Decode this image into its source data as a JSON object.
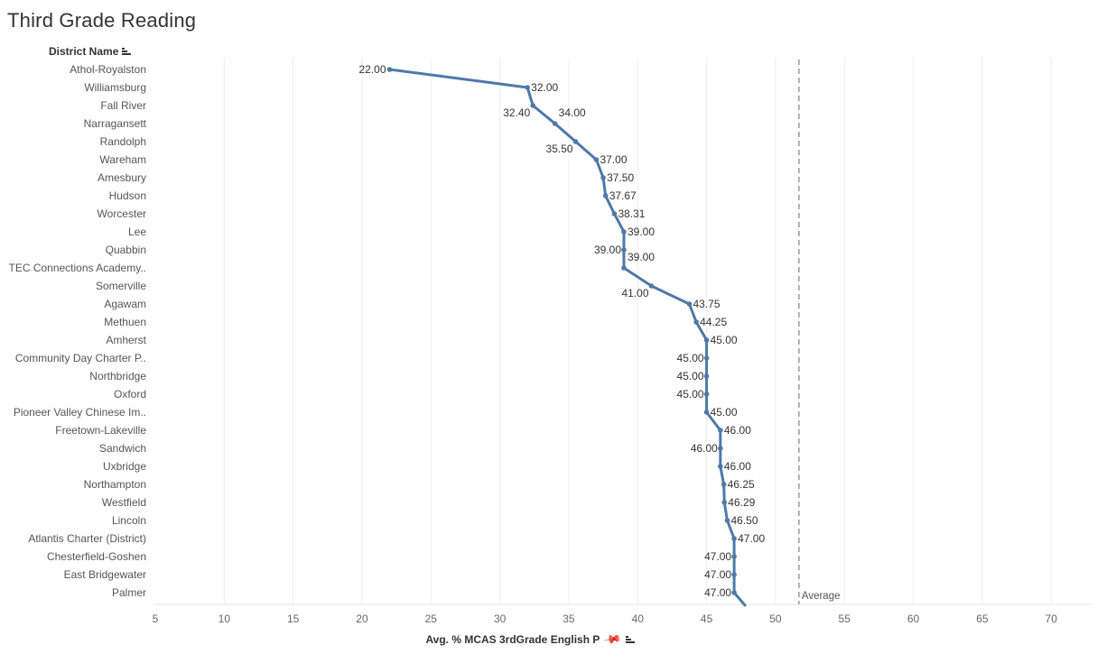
{
  "title": "Third Grade Reading",
  "row_header": {
    "label": "District Name",
    "sort_icon": "sort-descending-icon"
  },
  "x_axis": {
    "label": "Avg. % MCAS 3rdGrade English P",
    "pin_icon": "pin-icon",
    "sort_icon": "sort-descending-icon"
  },
  "reference_line": {
    "label": "Average",
    "value": 51.7
  },
  "chart_data": {
    "type": "line",
    "orientation": "horizontal",
    "categories": [
      "Athol-Royalston",
      "Williamsburg",
      "Fall River",
      "Narragansett",
      "Randolph",
      "Wareham",
      "Amesbury",
      "Hudson",
      "Worcester",
      "Lee",
      "Quabbin",
      "TEC Connections Academy..",
      "Somerville",
      "Agawam",
      "Methuen",
      "Amherst",
      "Community Day Charter P..",
      "Northbridge",
      "Oxford",
      "Pioneer Valley Chinese Im..",
      "Freetown-Lakeville",
      "Sandwich",
      "Uxbridge",
      "Northampton",
      "Westfield",
      "Lincoln",
      "Atlantis Charter (District)",
      "Chesterfield-Goshen",
      "East Bridgewater",
      "Palmer"
    ],
    "values": [
      22.0,
      32.0,
      32.4,
      34.0,
      35.5,
      37.0,
      37.5,
      37.67,
      38.31,
      39.0,
      39.0,
      39.0,
      41.0,
      43.75,
      44.25,
      45.0,
      45.0,
      45.0,
      45.0,
      45.0,
      46.0,
      46.0,
      46.0,
      46.25,
      46.29,
      46.5,
      47.0,
      47.0,
      47.0,
      47.0
    ],
    "labels": [
      "22.00",
      "32.00",
      "32.40",
      "34.00",
      "35.50",
      "37.00",
      "37.50",
      "37.67",
      "38.31",
      "39.00",
      "39.00",
      "39.00",
      "41.00",
      "43.75",
      "44.25",
      "45.00",
      "45.00",
      "45.00",
      "45.00",
      "45.00",
      "46.00",
      "46.00",
      "46.00",
      "46.25",
      "46.29",
      "46.50",
      "47.00",
      "47.00",
      "47.00",
      "47.00"
    ],
    "xlim": [
      5,
      73
    ],
    "xticks": [
      5,
      10,
      15,
      20,
      25,
      30,
      35,
      40,
      45,
      50,
      55,
      60,
      65,
      70
    ],
    "line_color": "#4e79a7",
    "grid": true
  }
}
